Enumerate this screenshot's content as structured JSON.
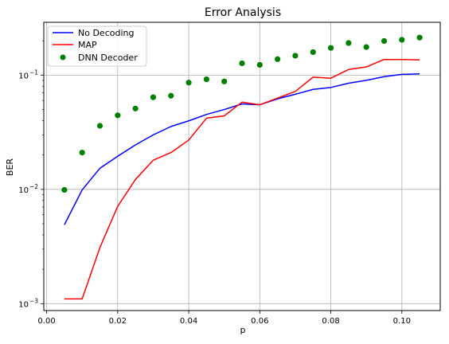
{
  "chart_data": {
    "type": "line",
    "title": "Error Analysis",
    "xlabel": "p",
    "ylabel": "BER",
    "xlim": [
      -0.0008,
      0.1108
    ],
    "ylim": [
      0.00087,
      0.29
    ],
    "yscale": "log",
    "grid": true,
    "legend_position": "top-left",
    "xticks": [
      {
        "value": 0.0,
        "label": "0.00"
      },
      {
        "value": 0.02,
        "label": "0.02"
      },
      {
        "value": 0.04,
        "label": "0.04"
      },
      {
        "value": 0.06,
        "label": "0.06"
      },
      {
        "value": 0.08,
        "label": "0.08"
      },
      {
        "value": 0.1,
        "label": "0.10"
      }
    ],
    "yticks": [
      {
        "value": 0.001,
        "base": "10",
        "exp": "−3"
      },
      {
        "value": 0.01,
        "base": "10",
        "exp": "−2"
      },
      {
        "value": 0.1,
        "base": "10",
        "exp": "−1"
      }
    ],
    "x": [
      0.005,
      0.01,
      0.015,
      0.02,
      0.025,
      0.03,
      0.035,
      0.04,
      0.045,
      0.05,
      0.055,
      0.06,
      0.065,
      0.07,
      0.075,
      0.08,
      0.085,
      0.09,
      0.095,
      0.1,
      0.105
    ],
    "series": [
      {
        "name": "No Decoding",
        "kind": "line",
        "color": "#0000ff",
        "values": [
          0.0049,
          0.0099,
          0.0153,
          0.0195,
          0.0245,
          0.03,
          0.0355,
          0.0398,
          0.0453,
          0.05,
          0.056,
          0.055,
          0.062,
          0.068,
          0.075,
          0.078,
          0.085,
          0.09,
          0.097,
          0.1015,
          0.1025
        ]
      },
      {
        "name": "MAP",
        "kind": "line",
        "color": "#ff0000",
        "values": [
          0.0011,
          0.0011,
          0.0031,
          0.0071,
          0.0122,
          0.018,
          0.021,
          0.027,
          0.042,
          0.044,
          0.058,
          0.055,
          0.063,
          0.072,
          0.096,
          0.094,
          0.112,
          0.118,
          0.137,
          0.137,
          0.136
        ]
      },
      {
        "name": "DNN Decoder",
        "kind": "scatter",
        "color": "#008000",
        "values": [
          0.0099,
          0.021,
          0.036,
          0.0445,
          0.051,
          0.064,
          0.066,
          0.086,
          0.092,
          0.088,
          0.127,
          0.123,
          0.138,
          0.148,
          0.159,
          0.173,
          0.191,
          0.176,
          0.199,
          0.204,
          0.213
        ]
      }
    ]
  }
}
